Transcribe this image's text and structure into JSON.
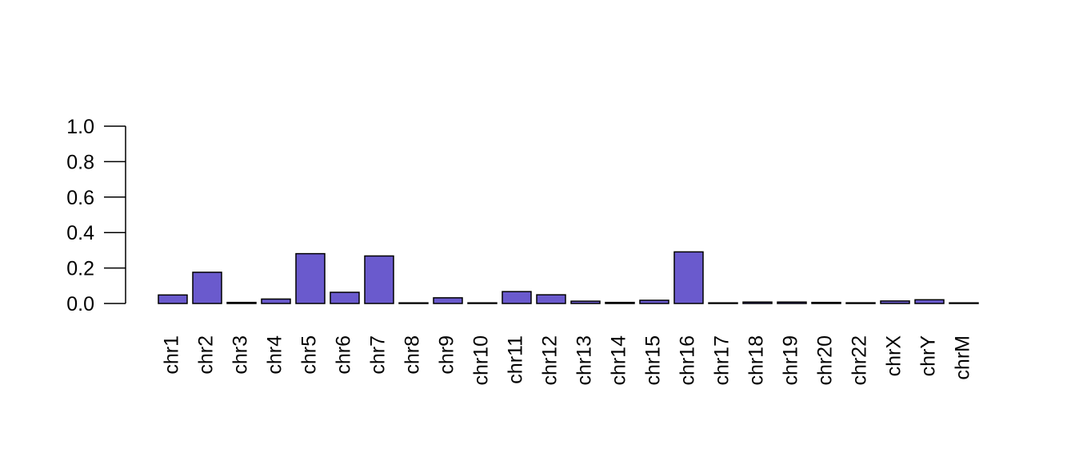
{
  "chart_data": {
    "type": "bar",
    "title": "",
    "xlabel": "",
    "ylabel": "",
    "ylim": [
      0,
      1
    ],
    "yticks": [
      "0.0",
      "0.2",
      "0.4",
      "0.6",
      "0.8",
      "1.0"
    ],
    "grid": false,
    "legend": "none",
    "bar_color": "#6a5acd",
    "bar_border_color": "#000000",
    "categories": [
      "chr1",
      "chr2",
      "chr3",
      "chr4",
      "chr5",
      "chr6",
      "chr7",
      "chr8",
      "chr9",
      "chr10",
      "chr11",
      "chr12",
      "chr13",
      "chr14",
      "chr15",
      "chr16",
      "chr17",
      "chr18",
      "chr19",
      "chr20",
      "chr22",
      "chrX",
      "chrY",
      "chrM"
    ],
    "values": [
      0.048,
      0.176,
      0.006,
      0.025,
      0.281,
      0.063,
      0.268,
      0.002,
      0.032,
      0.003,
      0.067,
      0.049,
      0.013,
      0.006,
      0.018,
      0.291,
      0.002,
      0.008,
      0.008,
      0.006,
      0.004,
      0.014,
      0.021,
      0.001
    ]
  }
}
